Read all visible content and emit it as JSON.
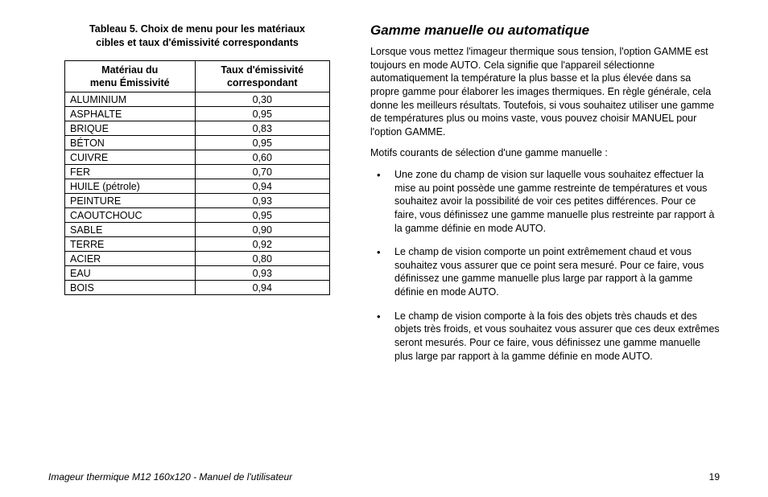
{
  "table": {
    "caption_line1": "Tableau 5. Choix de menu pour les matériaux",
    "caption_line2": "cibles et taux d'émissivité correspondants",
    "columns": {
      "material_line1": "Matériau du",
      "material_line2": "menu Émissivité",
      "rate_line1": "Taux d'émissivité",
      "rate_line2": "correspondant"
    },
    "rows": [
      {
        "material": "ALUMINIUM",
        "rate": "0,30"
      },
      {
        "material": "ASPHALTE",
        "rate": "0,95"
      },
      {
        "material": "BRIQUE",
        "rate": "0,83"
      },
      {
        "material": "BÉTON",
        "rate": "0,95"
      },
      {
        "material": "CUIVRE",
        "rate": "0,60"
      },
      {
        "material": "FER",
        "rate": "0,70"
      },
      {
        "material": "HUILE (pétrole)",
        "rate": "0,94"
      },
      {
        "material": "PEINTURE",
        "rate": "0,93"
      },
      {
        "material": "CAOUTCHOUC",
        "rate": "0,95"
      },
      {
        "material": "SABLE",
        "rate": "0,90"
      },
      {
        "material": "TERRE",
        "rate": "0,92"
      },
      {
        "material": "ACIER",
        "rate": "0,80"
      },
      {
        "material": "EAU",
        "rate": "0,93"
      },
      {
        "material": "BOIS",
        "rate": "0,94"
      }
    ]
  },
  "section": {
    "heading": "Gamme manuelle ou automatique",
    "para1": "Lorsque vous mettez l'imageur thermique sous tension, l'option GAMME est toujours en mode AUTO. Cela signifie que l'appareil sélectionne automatiquement la température la plus basse et la plus élevée dans sa propre gamme pour élaborer les images thermiques. En règle générale, cela donne les meilleurs résultats. Toutefois, si vous souhaitez utiliser une gamme de températures plus ou moins vaste, vous pouvez choisir MANUEL pour l'option GAMME.",
    "para2": "Motifs courants de sélection d'une gamme manuelle :",
    "bullets": [
      "Une zone du champ de vision sur laquelle vous souhaitez effectuer la mise au point possède une gamme restreinte de températures et vous souhaitez avoir la possibilité de voir ces petites différences. Pour ce faire, vous définissez une gamme manuelle plus restreinte par rapport à la gamme définie en mode AUTO.",
      "Le champ de vision comporte un point extrêmement chaud et vous souhaitez vous assurer que ce point sera mesuré. Pour ce faire, vous définissez une gamme manuelle plus large par rapport à la gamme définie en mode AUTO.",
      "Le champ de vision comporte à la fois des objets très chauds et des objets très froids, et vous souhaitez vous assurer que ces deux extrêmes seront mesurés. Pour ce faire, vous définissez une gamme manuelle plus large par rapport à la gamme définie en mode AUTO."
    ]
  },
  "footer": {
    "title": "Imageur thermique M12 160x120 - Manuel de l'utilisateur",
    "page": "19"
  }
}
